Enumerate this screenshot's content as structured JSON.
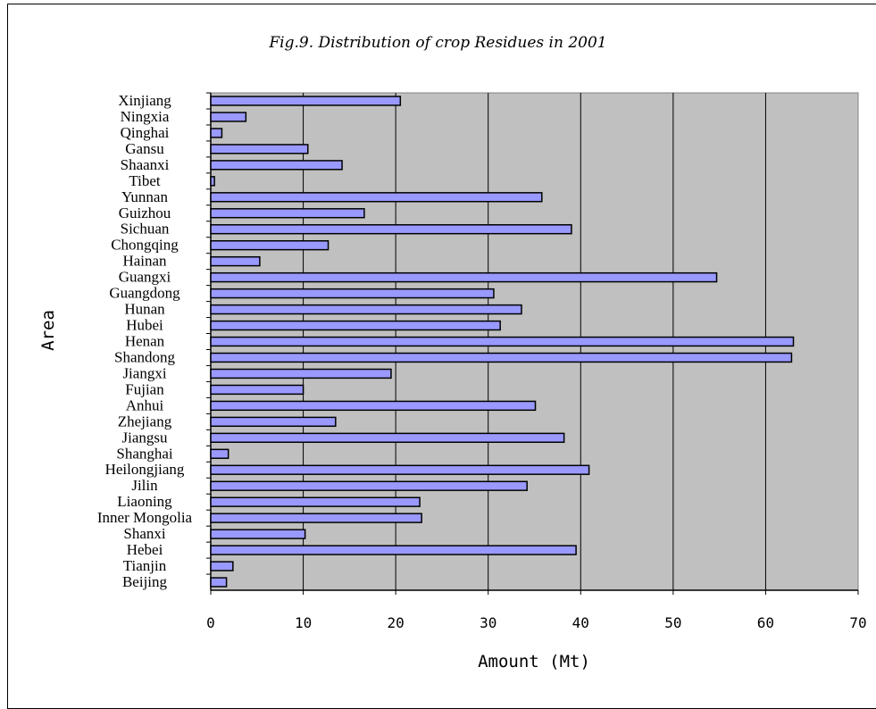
{
  "chart_data": {
    "type": "bar",
    "orientation": "horizontal",
    "title": "Fig.9. Distribution of crop Residues in 2001",
    "xlabel": "Amount (Mt)",
    "ylabel": "Area",
    "xlim": [
      0,
      70
    ],
    "x_ticks": [
      "0",
      "10",
      "20",
      "30",
      "40",
      "50",
      "60",
      "70"
    ],
    "grid": "vertical",
    "categories": [
      "Xinjiang",
      "Ningxia",
      "Qinghai",
      "Gansu",
      "Shaanxi",
      "Tibet",
      "Yunnan",
      "Guizhou",
      "Sichuan",
      "Chongqing",
      "Hainan",
      "Guangxi",
      "Guangdong",
      "Hunan",
      "Hubei",
      "Henan",
      "Shandong",
      "Jiangxi",
      "Fujian",
      "Anhui",
      "Zhejiang",
      "Jiangsu",
      "Shanghai",
      "Heilongjiang",
      "Jilin",
      "Liaoning",
      "Inner Mongolia",
      "Shanxi",
      "Hebei",
      "Tianjin",
      "Beijing"
    ],
    "values": [
      20.5,
      3.8,
      1.2,
      10.5,
      14.2,
      0.4,
      35.8,
      16.6,
      39.0,
      12.7,
      5.3,
      54.7,
      30.6,
      33.6,
      31.3,
      63.0,
      62.8,
      19.5,
      10.0,
      35.1,
      13.5,
      38.2,
      1.9,
      40.9,
      34.2,
      22.6,
      22.8,
      10.2,
      39.5,
      2.4,
      1.7
    ],
    "colors": {
      "plot_bg": "#c0c0c0",
      "bar_fill": "#9999ff",
      "bar_stroke": "#000000",
      "grid": "#000000"
    }
  }
}
